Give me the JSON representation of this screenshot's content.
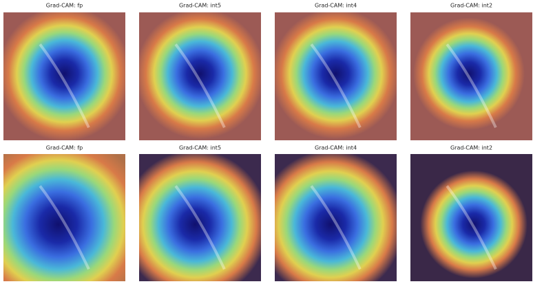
{
  "panels": [
    {
      "title": "Grad-CAM: fp"
    },
    {
      "title": "Grad-CAM: int5"
    },
    {
      "title": "Grad-CAM: int4"
    },
    {
      "title": "Grad-CAM: int2"
    },
    {
      "title": "Grad-CAM: fp"
    },
    {
      "title": "Grad-CAM: int5"
    },
    {
      "title": "Grad-CAM: int4"
    },
    {
      "title": "Grad-CAM: int2"
    }
  ]
}
